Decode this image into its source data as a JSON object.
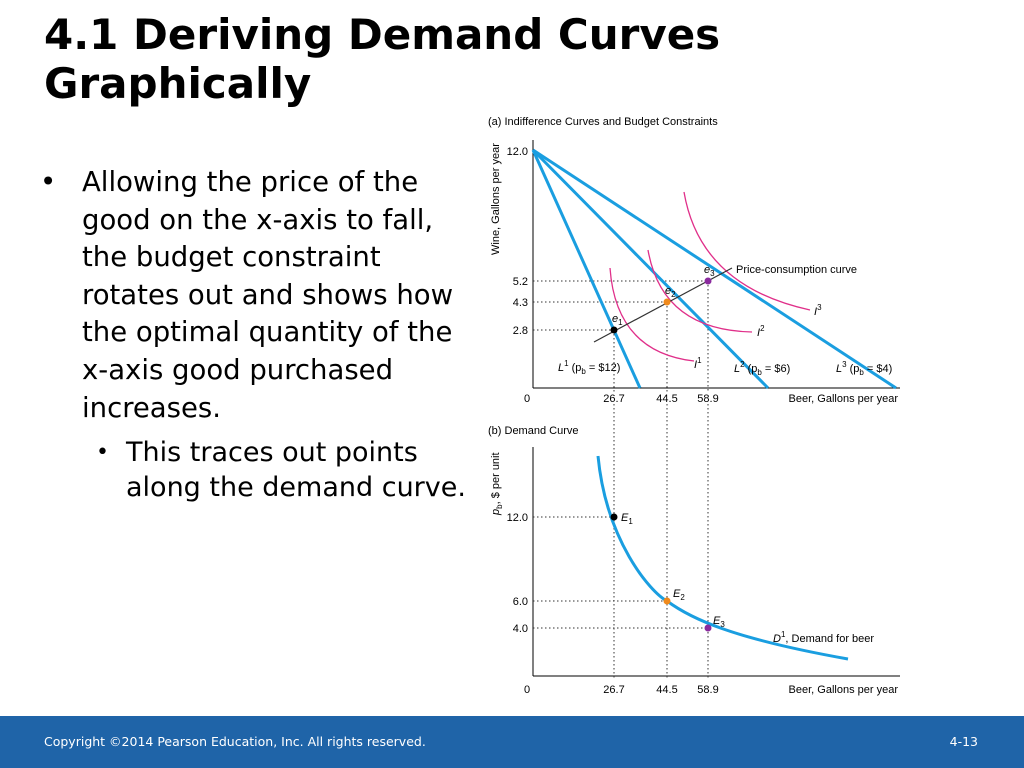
{
  "slide": {
    "title_line1": "4.1  Deriving Demand Curves",
    "title_line2": "Graphically",
    "bullet_main": "Allowing the price of the good on the x-axis to fall, the budget constraint rotates out and shows how the optimal quantity of the x-axis good purchased increases.",
    "bullet_sub": "This traces out points along the demand curve."
  },
  "footer": {
    "copyright": "Copyright ©2014 Pearson Education, Inc. All rights reserved.",
    "page_number": "4-13",
    "color": "#1f64a8"
  },
  "colors": {
    "blue": "#1a9ee0",
    "magenta": "#e0308a",
    "black_point": "#000000",
    "orange_point": "#f08a1c",
    "purple_point": "#8a2a9e"
  },
  "chart_data": [
    {
      "type": "line",
      "title": "(a) Indifference Curves and Budget Constraints",
      "ylabel": "Wine, Gallons per year",
      "xlabel": "Beer, Gallons per year",
      "origin_label": "0",
      "y_tick_labels": [
        "2.8",
        "4.3",
        "5.2",
        "12.0"
      ],
      "x_tick_labels": [
        "26.7",
        "44.5",
        "58.9"
      ],
      "budget_lines": [
        {
          "label": "L",
          "sup": "1",
          "mid": " (p",
          "sub": "b",
          "end": " = $12)"
        },
        {
          "label": "L",
          "sup": "2",
          "mid": " (p",
          "sub": "b",
          "end": " = $6)"
        },
        {
          "label": "L",
          "sup": "3",
          "mid": " (p",
          "sub": "b",
          "end": " = $4)"
        }
      ],
      "indifference_curves": [
        {
          "label": "I",
          "sup": "1"
        },
        {
          "label": "I",
          "sup": "2"
        },
        {
          "label": "I",
          "sup": "3"
        }
      ],
      "optimal_points": [
        {
          "label": "e",
          "sub": "1",
          "x": 26.7,
          "y": 2.8
        },
        {
          "label": "e",
          "sub": "2",
          "x": 44.5,
          "y": 4.3
        },
        {
          "label": "e",
          "sub": "3",
          "x": 58.9,
          "y": 5.2
        }
      ],
      "price_consumption_label": "Price-consumption curve"
    },
    {
      "type": "line",
      "title": "(b) Demand Curve",
      "ylabel_main": "p",
      "ylabel_sub": "b",
      "ylabel_rest": ", $ per unit",
      "xlabel": "Beer, Gallons per year",
      "origin_label": "0",
      "y_tick_labels": [
        "4.0",
        "6.0",
        "12.0"
      ],
      "x_tick_labels": [
        "26.7",
        "44.5",
        "58.9"
      ],
      "points": [
        {
          "label": "E",
          "sub": "1",
          "x": 26.7,
          "y": 12.0
        },
        {
          "label": "E",
          "sub": "2",
          "x": 44.5,
          "y": 6.0
        },
        {
          "label": "E",
          "sub": "3",
          "x": 58.9,
          "y": 4.0
        }
      ],
      "demand_label_main": "D",
      "demand_label_sup": "1",
      "demand_label_rest": ", Demand for beer"
    }
  ]
}
